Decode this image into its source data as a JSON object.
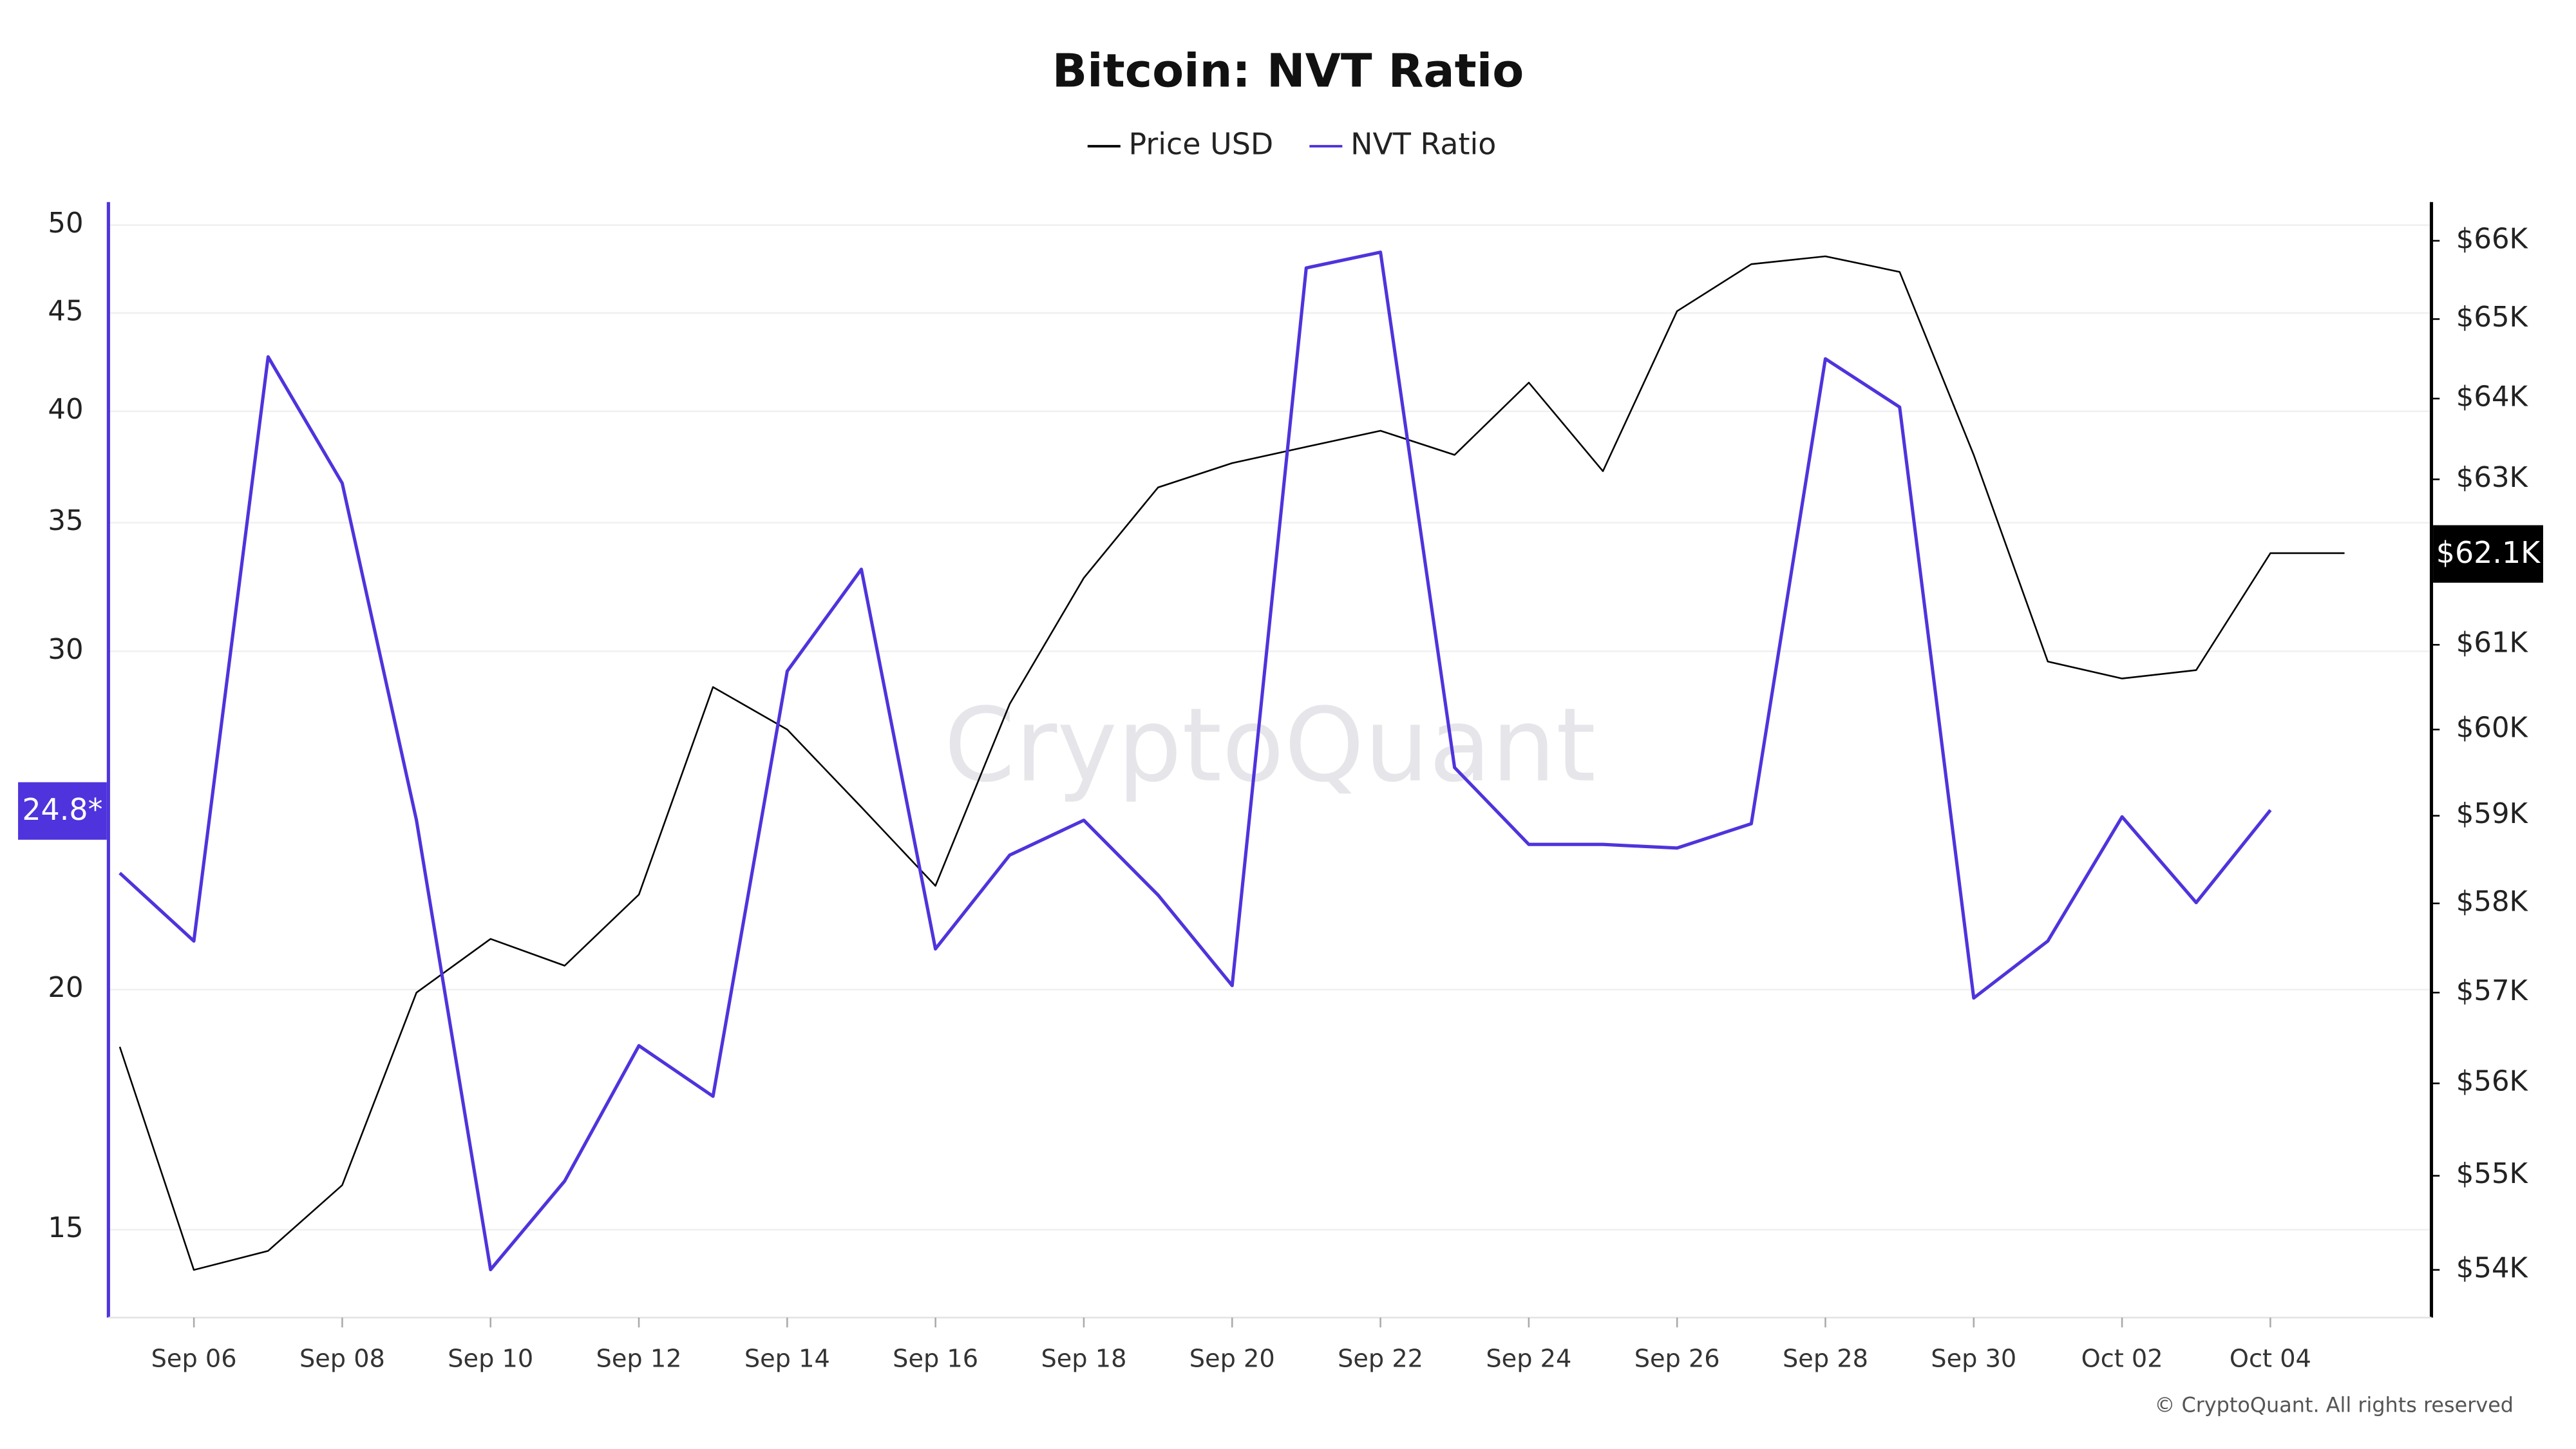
{
  "chart_data": {
    "type": "line",
    "title": "Bitcoin: NVT Ratio",
    "watermark": "CryptoQuant",
    "copyright": "© CryptoQuant. All rights reserved",
    "categories": [
      null,
      "Sep 06",
      null,
      "Sep 08",
      null,
      "Sep 10",
      null,
      "Sep 12",
      null,
      "Sep 14",
      null,
      "Sep 16",
      null,
      "Sep 18",
      null,
      "Sep 20",
      null,
      "Sep 22",
      null,
      "Sep 24",
      null,
      "Sep 26",
      null,
      "Sep 28",
      null,
      "Sep 30",
      null,
      "Oct 02",
      null,
      "Oct 04",
      null
    ],
    "series": [
      {
        "name": "Price USD",
        "color": "#000000",
        "axis": "y2",
        "values": [
          56400,
          54000,
          54200,
          54900,
          57000,
          57600,
          57300,
          58100,
          60500,
          60000,
          59100,
          58200,
          60300,
          61800,
          62900,
          63200,
          63400,
          63600,
          63300,
          64200,
          63100,
          65100,
          65700,
          65800,
          65600,
          63300,
          60800,
          60600,
          60700,
          62100,
          62100
        ],
        "value_labels": [
          null,
          null,
          null,
          null,
          null,
          null,
          null,
          null,
          null,
          null,
          null,
          null,
          null,
          null,
          null,
          null,
          null,
          null,
          null,
          null,
          null,
          null,
          null,
          null,
          null,
          null,
          null,
          null,
          null,
          null,
          "$62.1K"
        ]
      },
      {
        "name": "NVT Ratio",
        "color": "#4f33dc",
        "values": [
          23.0,
          21.2,
          42.7,
          36.7,
          24.5,
          14.3,
          15.9,
          18.7,
          17.6,
          29.3,
          33.1,
          21.0,
          23.5,
          24.5,
          22.4,
          20.1,
          47.5,
          48.4,
          26.1,
          23.8,
          23.8,
          23.7,
          24.4,
          42.6,
          40.2,
          19.8,
          21.2,
          24.6,
          22.2,
          24.8,
          null
        ],
        "value_labels": [
          null,
          null,
          null,
          null,
          null,
          null,
          null,
          null,
          null,
          null,
          null,
          null,
          null,
          null,
          null,
          null,
          null,
          null,
          null,
          null,
          null,
          null,
          null,
          null,
          null,
          null,
          null,
          null,
          null,
          "24.8*",
          null
        ]
      }
    ],
    "ylim": [
      13.5,
      51.4
    ],
    "yticks": [
      15,
      20,
      30,
      35,
      40,
      45,
      50
    ],
    "ylog": true,
    "y2lim": [
      53500,
      66500
    ],
    "y2ticks": [
      {
        "value": 54000,
        "label": "$54K"
      },
      {
        "value": 55000,
        "label": "$55K"
      },
      {
        "value": 56000,
        "label": "$56K"
      },
      {
        "value": 57000,
        "label": "$57K"
      },
      {
        "value": 58000,
        "label": "$58K"
      },
      {
        "value": 59000,
        "label": "$59K"
      },
      {
        "value": 60000,
        "label": "$60K"
      },
      {
        "value": 61000,
        "label": "$61K"
      },
      {
        "value": 62000,
        "label": "$62K"
      },
      {
        "value": 63000,
        "label": "$63K"
      },
      {
        "value": 64000,
        "label": "$64K"
      },
      {
        "value": 65000,
        "label": "$65K"
      },
      {
        "value": 66000,
        "label": "$66K"
      }
    ],
    "y2log": true,
    "grid": true,
    "legend": "top"
  }
}
